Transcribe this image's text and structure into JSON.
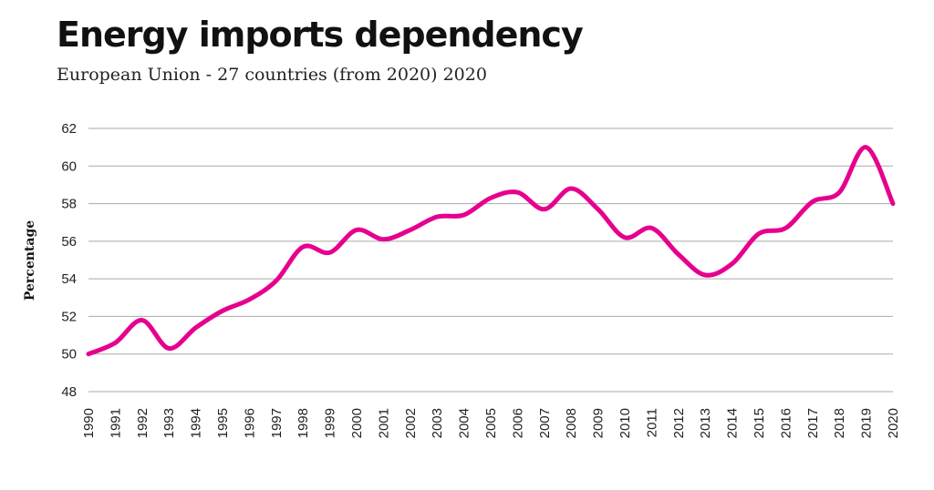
{
  "chart_data": {
    "type": "line",
    "title": "Energy imports dependency",
    "subtitle": "European Union - 27 countries (from 2020) 2020",
    "xlabel": "",
    "ylabel": "Percentage",
    "ylim": [
      48,
      62
    ],
    "yticks": [
      48,
      50,
      52,
      54,
      56,
      58,
      60,
      62
    ],
    "grid": true,
    "colors": {
      "line": "#e6008e",
      "grid": "#aaaaaa",
      "text": "#222222"
    },
    "x": [
      "1990",
      "1991",
      "1992",
      "1993",
      "1994",
      "1995",
      "1996",
      "1997",
      "1998",
      "1999",
      "2000",
      "2001",
      "2002",
      "2003",
      "2004",
      "2005",
      "2006",
      "2007",
      "2008",
      "2009",
      "2010",
      "2011",
      "2012",
      "2013",
      "2014",
      "2015",
      "2016",
      "2017",
      "2018",
      "2019",
      "2020"
    ],
    "series": [
      {
        "values": [
          50.0,
          50.6,
          51.8,
          50.3,
          51.4,
          52.3,
          52.9,
          53.9,
          55.7,
          55.4,
          56.6,
          56.1,
          56.6,
          57.3,
          57.4,
          58.3,
          58.6,
          57.7,
          58.8,
          57.7,
          56.2,
          56.7,
          55.3,
          54.2,
          54.8,
          56.4,
          56.7,
          58.1,
          58.6,
          61.0,
          58.0
        ]
      }
    ]
  }
}
